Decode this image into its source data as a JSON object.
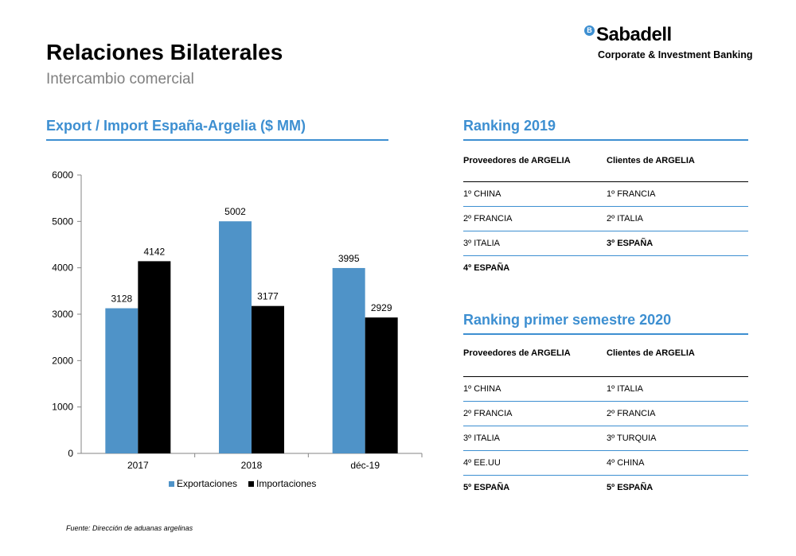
{
  "header": {
    "title": "Relaciones Bilaterales",
    "subtitle": "Intercambio comercial"
  },
  "logo": {
    "mark": "B",
    "name": "Sabadell",
    "tagline": "Corporate & Investment Banking"
  },
  "colors": {
    "accent": "#3d8fd1",
    "exports": "#4f93c8",
    "imports": "#000000"
  },
  "chart_section": {
    "title": "Export / Import España-Argelia ($ MM)"
  },
  "chart_data": {
    "type": "bar",
    "categories": [
      "2017",
      "2018",
      "déc-19"
    ],
    "series": [
      {
        "name": "Exportaciones",
        "values": [
          3128,
          5002,
          3995
        ]
      },
      {
        "name": "Importaciones",
        "values": [
          4142,
          3177,
          2929
        ]
      }
    ],
    "data_labels": [
      [
        "3128",
        "5002",
        "3995"
      ],
      [
        "4142",
        "3177",
        "2929"
      ]
    ],
    "yticks": [
      0,
      1000,
      2000,
      3000,
      4000,
      5000,
      6000
    ],
    "ylim": [
      0,
      6000
    ],
    "legend": "bottom",
    "grid": false
  },
  "source": "Fuente:  Dirección de aduanas argelinas",
  "ranking_2019": {
    "title": "Ranking 2019",
    "col_a": "Proveedores de ARGELIA",
    "col_b": "Clientes de ARGELIA",
    "rows": [
      {
        "a": "1º CHINA",
        "b": "1º FRANCIA"
      },
      {
        "a": "2º FRANCIA",
        "b": "2º ITALIA"
      },
      {
        "a": "3º ITALIA",
        "b": "3º ESPAÑA"
      },
      {
        "a": "4º ESPAÑA",
        "b": ""
      }
    ]
  },
  "ranking_2020": {
    "title": "Ranking  primer  semestre 2020",
    "col_a": "Proveedores de ARGELIA",
    "col_b": "Clientes de ARGELIA",
    "rows": [
      {
        "a": "1º CHINA",
        "b": "1º ITALIA"
      },
      {
        "a": "2º FRANCIA",
        "b": "2º FRANCIA"
      },
      {
        "a": "3º ITALIA",
        "b": "3º TURQUIA"
      },
      {
        "a": "4º EE.UU",
        "b": "4º CHINA"
      },
      {
        "a": "5º ESPAÑA",
        "b": "5º ESPAÑA"
      }
    ]
  }
}
